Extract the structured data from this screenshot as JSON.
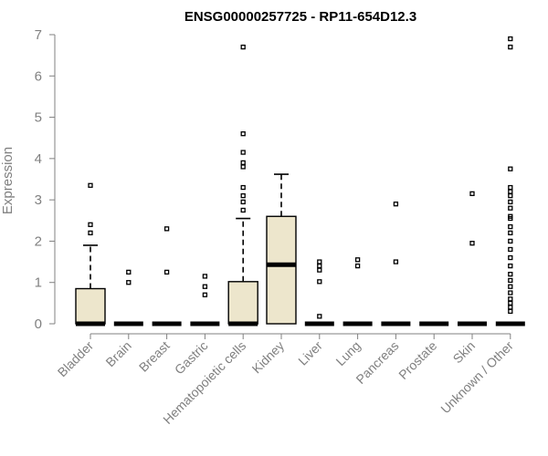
{
  "chart_data": {
    "type": "box",
    "title": "ENSG00000257725 - RP11-654D12.3",
    "ylabel": "Expression",
    "xlabel": "",
    "ylim": [
      0,
      7
    ],
    "yticks": [
      0,
      1,
      2,
      3,
      4,
      5,
      6,
      7
    ],
    "colors": {
      "box_fill": "#ede6cc",
      "axis": "#808080",
      "stroke": "#000000"
    },
    "categories": [
      "Bladder",
      "Brain",
      "Breast",
      "Gastric",
      "Hematopoietic cells",
      "Kidney",
      "Liver",
      "Lung",
      "Pancreas",
      "Prostate",
      "Skin",
      "Unknown / Other"
    ],
    "boxes": [
      {
        "category": "Bladder",
        "q1": 0,
        "median": 0,
        "q3": 0.85,
        "whisker_low": 0,
        "whisker_high": 1.9,
        "outliers": [
          2.2,
          2.4,
          3.35
        ]
      },
      {
        "category": "Brain",
        "q1": 0,
        "median": 0,
        "q3": 0,
        "whisker_low": 0,
        "whisker_high": 0,
        "outliers": [
          1.0,
          1.25
        ]
      },
      {
        "category": "Breast",
        "q1": 0,
        "median": 0,
        "q3": 0,
        "whisker_low": 0,
        "whisker_high": 0,
        "outliers": [
          1.25,
          2.3
        ]
      },
      {
        "category": "Gastric",
        "q1": 0,
        "median": 0,
        "q3": 0,
        "whisker_low": 0,
        "whisker_high": 0,
        "outliers": [
          0.7,
          0.9,
          1.15
        ]
      },
      {
        "category": "Hematopoietic cells",
        "q1": 0,
        "median": 0,
        "q3": 1.02,
        "whisker_low": 0,
        "whisker_high": 2.55,
        "outliers": [
          2.75,
          2.95,
          3.1,
          3.3,
          3.8,
          3.9,
          4.15,
          4.6,
          6.7
        ]
      },
      {
        "category": "Kidney",
        "q1": 0,
        "median": 1.43,
        "q3": 2.6,
        "whisker_low": 0,
        "whisker_high": 3.62,
        "outliers": []
      },
      {
        "category": "Liver",
        "q1": 0,
        "median": 0,
        "q3": 0,
        "whisker_low": 0,
        "whisker_high": 0,
        "outliers": [
          0.18,
          1.02,
          1.3,
          1.4,
          1.5
        ]
      },
      {
        "category": "Lung",
        "q1": 0,
        "median": 0,
        "q3": 0,
        "whisker_low": 0,
        "whisker_high": 0,
        "outliers": [
          1.4,
          1.55
        ]
      },
      {
        "category": "Pancreas",
        "q1": 0,
        "median": 0,
        "q3": 0,
        "whisker_low": 0,
        "whisker_high": 0,
        "outliers": [
          1.5,
          2.9
        ]
      },
      {
        "category": "Prostate",
        "q1": 0,
        "median": 0,
        "q3": 0,
        "whisker_low": 0,
        "whisker_high": 0,
        "outliers": []
      },
      {
        "category": "Skin",
        "q1": 0,
        "median": 0,
        "q3": 0,
        "whisker_low": 0,
        "whisker_high": 0,
        "outliers": [
          1.95,
          3.15
        ]
      },
      {
        "category": "Unknown / Other",
        "q1": 0,
        "median": 0,
        "q3": 0,
        "whisker_low": 0,
        "whisker_high": 0,
        "outliers": [
          0.3,
          0.4,
          0.5,
          0.6,
          0.75,
          0.9,
          1.05,
          1.2,
          1.4,
          1.6,
          1.8,
          2.0,
          2.2,
          2.35,
          2.55,
          2.6,
          2.8,
          2.95,
          3.1,
          3.2,
          3.3,
          3.75,
          6.7,
          6.9
        ]
      }
    ]
  }
}
